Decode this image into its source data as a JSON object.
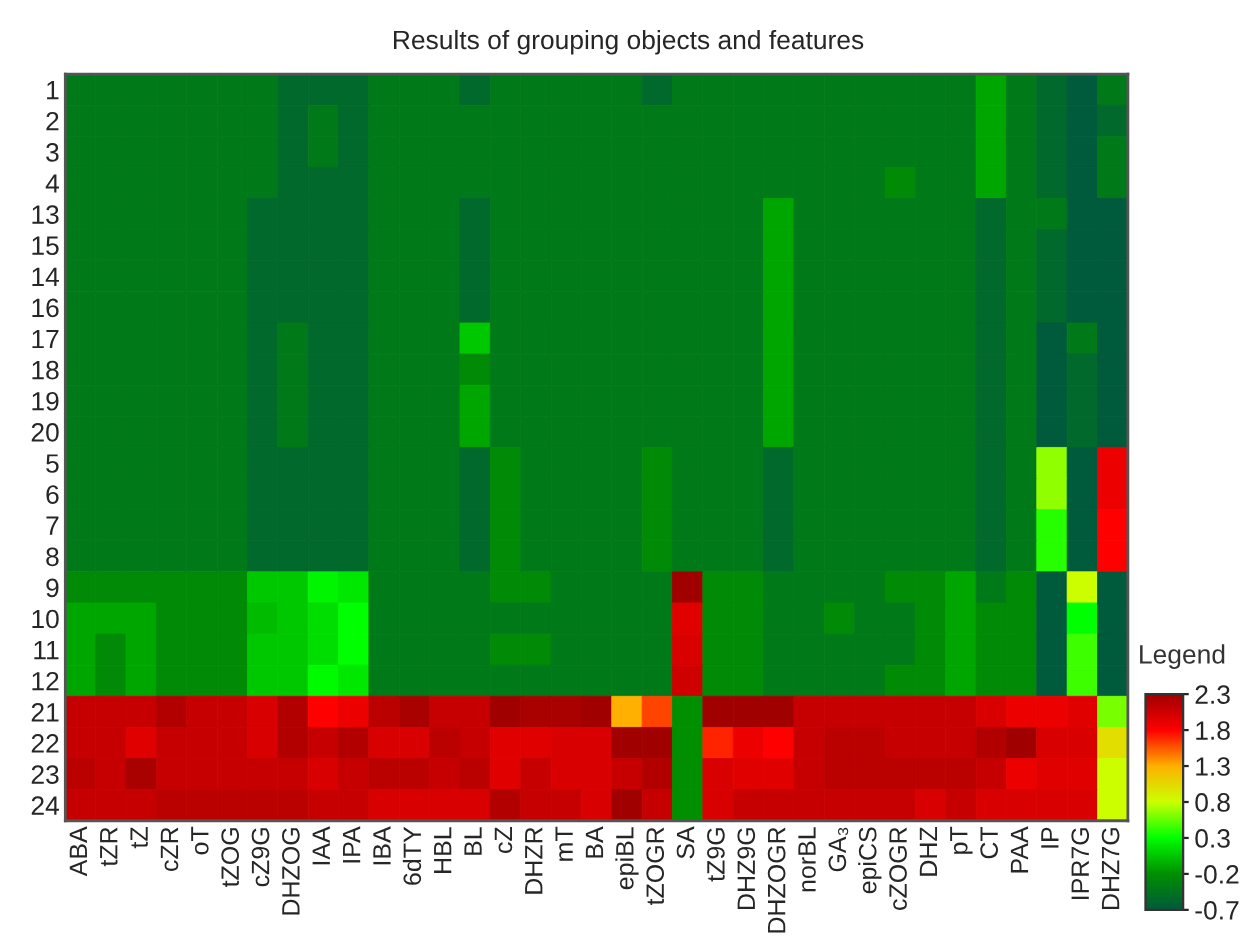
{
  "chart_data": {
    "type": "heatmap",
    "title": "Results of grouping objects and features",
    "categories": [
      "ABA",
      "tZR",
      "tZ",
      "cZR",
      "oT",
      "tZOG",
      "cZ9G",
      "DHZOG",
      "IAA",
      "IPA",
      "IBA",
      "6dTY",
      "HBL",
      "BL",
      "cZ",
      "DHZR",
      "mT",
      "BA",
      "epiBL",
      "tZOGR",
      "SA",
      "tZ9G",
      "DHZ9G",
      "DHZOGR",
      "norBL",
      "GA₃",
      "epiCS",
      "cZOGR",
      "DHZ",
      "pT",
      "CT",
      "PAA",
      "IP",
      "IPR7G",
      "DHZ7G"
    ],
    "y_categories": [
      "1",
      "2",
      "3",
      "4",
      "13",
      "15",
      "14",
      "16",
      "17",
      "18",
      "19",
      "20",
      "5",
      "6",
      "7",
      "8",
      "9",
      "10",
      "11",
      "12",
      "21",
      "22",
      "23",
      "24"
    ],
    "cells": [
      [
        -0.4,
        -0.4,
        -0.4,
        -0.4,
        -0.4,
        -0.4,
        -0.4,
        -0.55,
        -0.55,
        -0.55,
        -0.4,
        -0.4,
        -0.4,
        -0.55,
        -0.4,
        -0.4,
        -0.4,
        -0.4,
        -0.4,
        -0.55,
        -0.4,
        -0.4,
        -0.4,
        -0.4,
        -0.4,
        -0.4,
        -0.4,
        -0.4,
        -0.4,
        -0.4,
        -0.1,
        -0.4,
        -0.55,
        -0.7,
        -0.4
      ],
      [
        -0.4,
        -0.4,
        -0.4,
        -0.4,
        -0.4,
        -0.4,
        -0.4,
        -0.55,
        -0.4,
        -0.55,
        -0.4,
        -0.4,
        -0.4,
        -0.4,
        -0.4,
        -0.4,
        -0.4,
        -0.4,
        -0.4,
        -0.4,
        -0.4,
        -0.4,
        -0.4,
        -0.4,
        -0.4,
        -0.4,
        -0.4,
        -0.4,
        -0.4,
        -0.4,
        -0.1,
        -0.4,
        -0.55,
        -0.7,
        -0.55
      ],
      [
        -0.4,
        -0.4,
        -0.4,
        -0.4,
        -0.4,
        -0.4,
        -0.4,
        -0.55,
        -0.4,
        -0.55,
        -0.4,
        -0.4,
        -0.4,
        -0.4,
        -0.4,
        -0.4,
        -0.4,
        -0.4,
        -0.4,
        -0.4,
        -0.4,
        -0.4,
        -0.4,
        -0.4,
        -0.4,
        -0.4,
        -0.4,
        -0.4,
        -0.4,
        -0.4,
        -0.1,
        -0.4,
        -0.55,
        -0.7,
        -0.4
      ],
      [
        -0.4,
        -0.4,
        -0.4,
        -0.4,
        -0.4,
        -0.4,
        -0.4,
        -0.55,
        -0.55,
        -0.55,
        -0.4,
        -0.4,
        -0.4,
        -0.4,
        -0.4,
        -0.4,
        -0.4,
        -0.4,
        -0.4,
        -0.4,
        -0.4,
        -0.4,
        -0.4,
        -0.4,
        -0.4,
        -0.4,
        -0.4,
        -0.25,
        -0.4,
        -0.4,
        -0.1,
        -0.4,
        -0.55,
        -0.7,
        -0.4
      ],
      [
        -0.4,
        -0.4,
        -0.4,
        -0.4,
        -0.4,
        -0.4,
        -0.55,
        -0.55,
        -0.55,
        -0.55,
        -0.4,
        -0.4,
        -0.4,
        -0.55,
        -0.4,
        -0.4,
        -0.4,
        -0.4,
        -0.4,
        -0.4,
        -0.4,
        -0.4,
        -0.4,
        -0.1,
        -0.4,
        -0.4,
        -0.4,
        -0.4,
        -0.4,
        -0.4,
        -0.55,
        -0.4,
        -0.4,
        -0.7,
        -0.7
      ],
      [
        -0.4,
        -0.4,
        -0.4,
        -0.4,
        -0.4,
        -0.4,
        -0.55,
        -0.55,
        -0.55,
        -0.55,
        -0.4,
        -0.4,
        -0.4,
        -0.55,
        -0.4,
        -0.4,
        -0.4,
        -0.4,
        -0.4,
        -0.4,
        -0.4,
        -0.4,
        -0.4,
        -0.1,
        -0.4,
        -0.4,
        -0.4,
        -0.4,
        -0.4,
        -0.4,
        -0.55,
        -0.4,
        -0.55,
        -0.7,
        -0.7
      ],
      [
        -0.4,
        -0.4,
        -0.4,
        -0.4,
        -0.4,
        -0.4,
        -0.55,
        -0.55,
        -0.55,
        -0.55,
        -0.4,
        -0.4,
        -0.4,
        -0.55,
        -0.4,
        -0.4,
        -0.4,
        -0.4,
        -0.4,
        -0.4,
        -0.4,
        -0.4,
        -0.4,
        -0.1,
        -0.4,
        -0.4,
        -0.4,
        -0.4,
        -0.4,
        -0.4,
        -0.55,
        -0.4,
        -0.55,
        -0.7,
        -0.7
      ],
      [
        -0.4,
        -0.4,
        -0.4,
        -0.4,
        -0.4,
        -0.4,
        -0.55,
        -0.55,
        -0.55,
        -0.55,
        -0.4,
        -0.4,
        -0.4,
        -0.55,
        -0.4,
        -0.4,
        -0.4,
        -0.4,
        -0.4,
        -0.4,
        -0.4,
        -0.4,
        -0.4,
        -0.1,
        -0.4,
        -0.4,
        -0.4,
        -0.4,
        -0.4,
        -0.4,
        -0.55,
        -0.4,
        -0.55,
        -0.7,
        -0.7
      ],
      [
        -0.4,
        -0.4,
        -0.4,
        -0.4,
        -0.4,
        -0.4,
        -0.55,
        -0.4,
        -0.55,
        -0.55,
        -0.4,
        -0.4,
        -0.4,
        0.05,
        -0.4,
        -0.4,
        -0.4,
        -0.4,
        -0.4,
        -0.4,
        -0.4,
        -0.4,
        -0.4,
        -0.1,
        -0.4,
        -0.4,
        -0.4,
        -0.4,
        -0.4,
        -0.4,
        -0.55,
        -0.4,
        -0.7,
        -0.4,
        -0.7
      ],
      [
        -0.4,
        -0.4,
        -0.4,
        -0.4,
        -0.4,
        -0.4,
        -0.55,
        -0.4,
        -0.55,
        -0.55,
        -0.4,
        -0.4,
        -0.4,
        -0.25,
        -0.4,
        -0.4,
        -0.4,
        -0.4,
        -0.4,
        -0.4,
        -0.4,
        -0.4,
        -0.4,
        -0.1,
        -0.4,
        -0.4,
        -0.4,
        -0.4,
        -0.4,
        -0.4,
        -0.55,
        -0.4,
        -0.7,
        -0.55,
        -0.7
      ],
      [
        -0.4,
        -0.4,
        -0.4,
        -0.4,
        -0.4,
        -0.4,
        -0.55,
        -0.4,
        -0.55,
        -0.55,
        -0.4,
        -0.4,
        -0.4,
        -0.1,
        -0.4,
        -0.4,
        -0.4,
        -0.4,
        -0.4,
        -0.4,
        -0.4,
        -0.4,
        -0.4,
        -0.1,
        -0.4,
        -0.4,
        -0.4,
        -0.4,
        -0.4,
        -0.4,
        -0.55,
        -0.4,
        -0.7,
        -0.55,
        -0.7
      ],
      [
        -0.4,
        -0.4,
        -0.4,
        -0.4,
        -0.4,
        -0.4,
        -0.55,
        -0.4,
        -0.55,
        -0.55,
        -0.4,
        -0.4,
        -0.4,
        -0.1,
        -0.4,
        -0.4,
        -0.4,
        -0.4,
        -0.4,
        -0.4,
        -0.4,
        -0.4,
        -0.4,
        -0.1,
        -0.4,
        -0.4,
        -0.4,
        -0.4,
        -0.4,
        -0.4,
        -0.55,
        -0.4,
        -0.7,
        -0.55,
        -0.7
      ],
      [
        -0.4,
        -0.4,
        -0.4,
        -0.4,
        -0.4,
        -0.4,
        -0.55,
        -0.55,
        -0.55,
        -0.55,
        -0.4,
        -0.4,
        -0.4,
        -0.55,
        -0.25,
        -0.4,
        -0.4,
        -0.4,
        -0.4,
        -0.25,
        -0.4,
        -0.4,
        -0.4,
        -0.55,
        -0.4,
        -0.4,
        -0.4,
        -0.4,
        -0.4,
        -0.4,
        -0.55,
        -0.4,
        0.65,
        -0.7,
        1.9
      ],
      [
        -0.4,
        -0.4,
        -0.4,
        -0.4,
        -0.4,
        -0.4,
        -0.55,
        -0.55,
        -0.55,
        -0.55,
        -0.4,
        -0.4,
        -0.4,
        -0.55,
        -0.25,
        -0.4,
        -0.4,
        -0.4,
        -0.4,
        -0.25,
        -0.4,
        -0.4,
        -0.4,
        -0.55,
        -0.4,
        -0.4,
        -0.4,
        -0.4,
        -0.4,
        -0.4,
        -0.55,
        -0.4,
        0.65,
        -0.7,
        1.9
      ],
      [
        -0.4,
        -0.4,
        -0.4,
        -0.4,
        -0.4,
        -0.4,
        -0.55,
        -0.55,
        -0.55,
        -0.55,
        -0.4,
        -0.4,
        -0.4,
        -0.55,
        -0.25,
        -0.4,
        -0.4,
        -0.4,
        -0.4,
        -0.25,
        -0.4,
        -0.4,
        -0.4,
        -0.55,
        -0.4,
        -0.4,
        -0.4,
        -0.4,
        -0.4,
        -0.4,
        -0.55,
        -0.4,
        0.4,
        -0.7,
        1.8
      ],
      [
        -0.4,
        -0.4,
        -0.4,
        -0.4,
        -0.4,
        -0.4,
        -0.55,
        -0.55,
        -0.55,
        -0.55,
        -0.4,
        -0.4,
        -0.4,
        -0.55,
        -0.25,
        -0.4,
        -0.4,
        -0.4,
        -0.4,
        -0.25,
        -0.4,
        -0.4,
        -0.4,
        -0.55,
        -0.4,
        -0.4,
        -0.4,
        -0.4,
        -0.4,
        -0.4,
        -0.55,
        -0.4,
        0.4,
        -0.7,
        1.8
      ],
      [
        -0.25,
        -0.25,
        -0.25,
        -0.25,
        -0.25,
        -0.25,
        0.05,
        0.05,
        0.25,
        0.2,
        -0.4,
        -0.4,
        -0.4,
        -0.4,
        -0.25,
        -0.25,
        -0.4,
        -0.4,
        -0.4,
        -0.4,
        2.3,
        -0.25,
        -0.25,
        -0.4,
        -0.4,
        -0.4,
        -0.4,
        -0.25,
        -0.25,
        -0.1,
        -0.4,
        -0.25,
        -0.7,
        0.8,
        -0.7
      ],
      [
        -0.1,
        -0.1,
        -0.1,
        -0.25,
        -0.25,
        -0.25,
        0.0,
        0.05,
        0.15,
        0.3,
        -0.4,
        -0.4,
        -0.4,
        -0.4,
        -0.4,
        -0.4,
        -0.4,
        -0.4,
        -0.4,
        -0.4,
        1.95,
        -0.25,
        -0.25,
        -0.4,
        -0.4,
        -0.25,
        -0.4,
        -0.4,
        -0.25,
        -0.1,
        -0.25,
        -0.25,
        -0.7,
        0.3,
        -0.7
      ],
      [
        -0.1,
        -0.25,
        -0.1,
        -0.25,
        -0.25,
        -0.25,
        0.05,
        0.05,
        0.15,
        0.3,
        -0.4,
        -0.4,
        -0.4,
        -0.4,
        -0.25,
        -0.25,
        -0.4,
        -0.4,
        -0.4,
        -0.4,
        2.0,
        -0.25,
        -0.25,
        -0.4,
        -0.4,
        -0.4,
        -0.4,
        -0.4,
        -0.25,
        -0.1,
        -0.25,
        -0.25,
        -0.7,
        0.45,
        -0.7
      ],
      [
        -0.1,
        -0.25,
        -0.1,
        -0.25,
        -0.25,
        -0.25,
        0.05,
        0.05,
        0.28,
        0.2,
        -0.4,
        -0.4,
        -0.4,
        -0.4,
        -0.4,
        -0.4,
        -0.4,
        -0.4,
        -0.4,
        -0.4,
        2.05,
        -0.25,
        -0.25,
        -0.4,
        -0.4,
        -0.4,
        -0.4,
        -0.25,
        -0.25,
        -0.1,
        -0.25,
        -0.25,
        -0.7,
        0.45,
        -0.7
      ],
      [
        2.1,
        2.1,
        2.1,
        2.2,
        2.1,
        2.1,
        2.0,
        2.2,
        1.8,
        1.9,
        2.15,
        2.25,
        2.1,
        2.1,
        2.3,
        2.25,
        2.25,
        2.3,
        1.3,
        1.6,
        -0.2,
        2.3,
        2.3,
        2.3,
        2.1,
        2.1,
        2.1,
        2.1,
        2.1,
        2.1,
        2.0,
        1.9,
        1.9,
        1.95,
        0.6
      ],
      [
        2.1,
        2.1,
        1.95,
        2.1,
        2.1,
        2.1,
        2.0,
        2.2,
        2.1,
        2.2,
        2.0,
        2.0,
        2.15,
        2.1,
        1.95,
        1.95,
        2.0,
        2.0,
        2.3,
        2.3,
        -0.2,
        1.7,
        1.9,
        1.8,
        2.1,
        2.15,
        2.15,
        2.1,
        2.1,
        2.1,
        2.2,
        2.3,
        2.0,
        2.0,
        1.0
      ],
      [
        2.15,
        2.1,
        2.25,
        2.1,
        2.1,
        2.1,
        2.1,
        2.1,
        2.0,
        2.1,
        2.15,
        2.15,
        2.1,
        2.15,
        1.95,
        2.1,
        2.0,
        2.0,
        2.1,
        2.2,
        -0.2,
        2.0,
        1.95,
        1.95,
        2.1,
        2.15,
        2.15,
        2.15,
        2.15,
        2.15,
        2.1,
        1.9,
        1.95,
        1.95,
        0.8
      ],
      [
        2.1,
        2.1,
        2.1,
        2.15,
        2.15,
        2.15,
        2.15,
        2.15,
        2.1,
        2.1,
        2.0,
        2.0,
        2.0,
        2.0,
        2.2,
        2.1,
        2.1,
        2.0,
        2.3,
        2.1,
        -0.2,
        2.0,
        2.1,
        2.1,
        2.1,
        2.1,
        2.1,
        2.1,
        2.0,
        2.1,
        2.0,
        2.0,
        2.0,
        2.0,
        0.8
      ]
    ],
    "clabel": "Legend",
    "clim": [
      -0.7,
      2.3
    ],
    "cticks": [
      2.3,
      1.8,
      1.3,
      0.8,
      0.3,
      -0.2,
      -0.7
    ],
    "colors": [
      "#a00000",
      "#ff0000",
      "#ffb000",
      "#ccff00",
      "#00ff00",
      "#009000",
      "#005a3c"
    ]
  }
}
